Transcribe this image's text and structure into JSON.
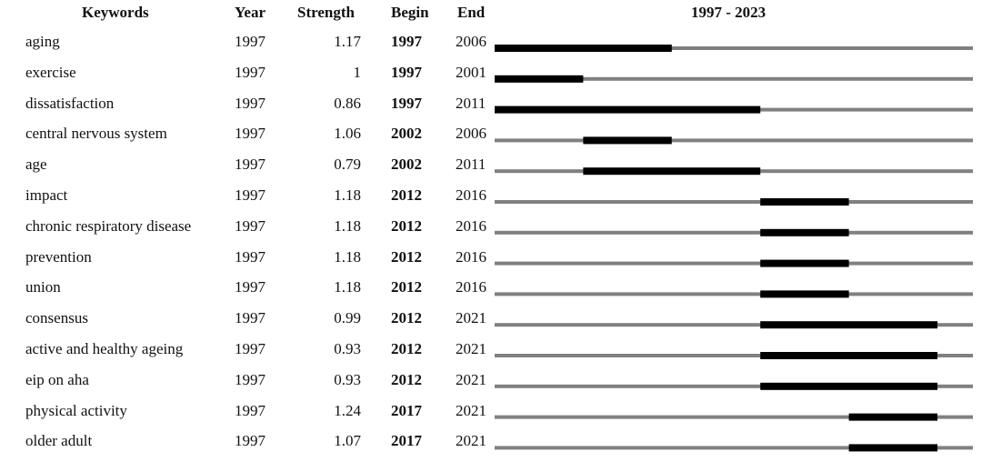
{
  "headers": {
    "keywords": "Keywords",
    "year": "Year",
    "strength": "Strength",
    "begin": "Begin",
    "end": "End",
    "range": "1997 - 2023"
  },
  "chart_data": {
    "type": "table",
    "timeline_start": 1997,
    "timeline_end": 2023,
    "colors": {
      "burst": "#000000",
      "baseline": "#808080"
    },
    "rows": [
      {
        "keyword": "aging",
        "year": "1997",
        "strength": "1.17",
        "begin": "1997",
        "end": "2006"
      },
      {
        "keyword": "exercise",
        "year": "1997",
        "strength": "1",
        "begin": "1997",
        "end": "2001"
      },
      {
        "keyword": "dissatisfaction",
        "year": "1997",
        "strength": "0.86",
        "begin": "1997",
        "end": "2011"
      },
      {
        "keyword": "central nervous system",
        "year": "1997",
        "strength": "1.06",
        "begin": "2002",
        "end": "2006"
      },
      {
        "keyword": "age",
        "year": "1997",
        "strength": "0.79",
        "begin": "2002",
        "end": "2011"
      },
      {
        "keyword": "impact",
        "year": "1997",
        "strength": "1.18",
        "begin": "2012",
        "end": "2016"
      },
      {
        "keyword": "chronic respiratory disease",
        "year": "1997",
        "strength": "1.18",
        "begin": "2012",
        "end": "2016"
      },
      {
        "keyword": "prevention",
        "year": "1997",
        "strength": "1.18",
        "begin": "2012",
        "end": "2016"
      },
      {
        "keyword": "union",
        "year": "1997",
        "strength": "1.18",
        "begin": "2012",
        "end": "2016"
      },
      {
        "keyword": "consensus",
        "year": "1997",
        "strength": "0.99",
        "begin": "2012",
        "end": "2021"
      },
      {
        "keyword": "active and healthy ageing",
        "year": "1997",
        "strength": "0.93",
        "begin": "2012",
        "end": "2021"
      },
      {
        "keyword": "eip on aha",
        "year": "1997",
        "strength": "0.93",
        "begin": "2012",
        "end": "2021"
      },
      {
        "keyword": "physical activity",
        "year": "1997",
        "strength": "1.24",
        "begin": "2017",
        "end": "2021"
      },
      {
        "keyword": "older adult",
        "year": "1997",
        "strength": "1.07",
        "begin": "2017",
        "end": "2021"
      }
    ]
  }
}
